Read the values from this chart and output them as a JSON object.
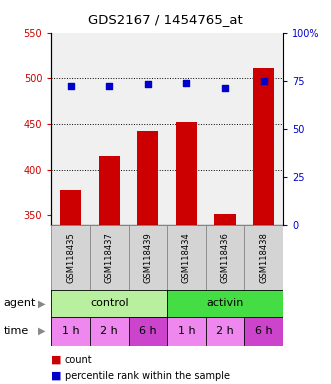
{
  "title": "GDS2167 / 1454765_at",
  "categories": [
    "GSM118435",
    "GSM118437",
    "GSM118439",
    "GSM118434",
    "GSM118436",
    "GSM118438"
  ],
  "bar_values": [
    378,
    415,
    442,
    452,
    352,
    511
  ],
  "dot_values": [
    72,
    72,
    73,
    74,
    71,
    75
  ],
  "ylim_left": [
    340,
    550
  ],
  "ylim_right": [
    0,
    100
  ],
  "yticks_left": [
    350,
    400,
    450,
    500,
    550
  ],
  "yticks_right": [
    0,
    25,
    50,
    75,
    100
  ],
  "bar_color": "#cc0000",
  "dot_color": "#0000cc",
  "agent_labels": [
    "control",
    "activin"
  ],
  "agent_color_control": "#b8f0a0",
  "agent_color_activin": "#44dd44",
  "time_labels": [
    "1 h",
    "2 h",
    "6 h",
    "1 h",
    "2 h",
    "6 h"
  ],
  "time_color_light": "#ee88ee",
  "time_color_dark": "#cc44cc",
  "legend_count_color": "#cc0000",
  "legend_dot_color": "#0000cc",
  "background_color": "#ffffff",
  "plot_bg_color": "#f0f0f0",
  "bar_width": 0.55
}
